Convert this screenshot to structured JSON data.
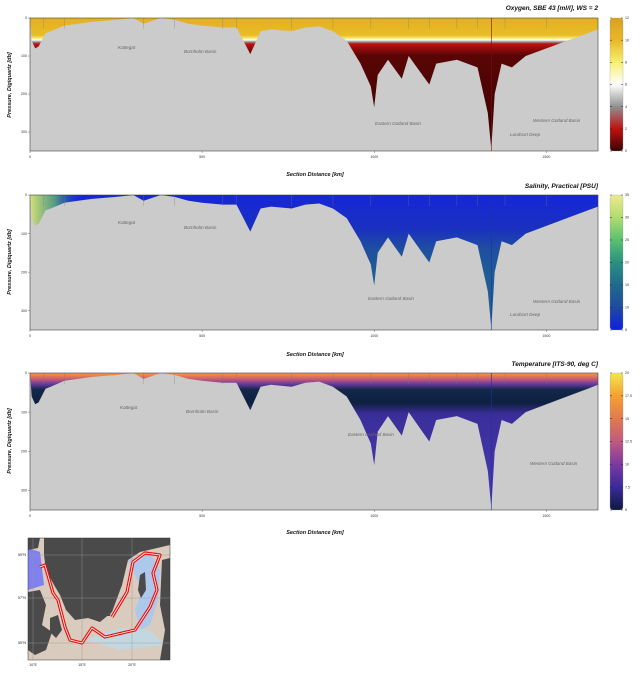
{
  "chart_data": [
    {
      "type": "heatmap",
      "title": "Oxygen, SBE 43 [ml/l], WS = 2",
      "xlabel": "Section Distance [km]",
      "ylabel": "Pressure, Digiquartz [db]",
      "xlim": [
        0,
        1650
      ],
      "ylim": [
        350,
        0
      ],
      "xticks": [
        "0",
        "500",
        "1000",
        "1500"
      ],
      "yticks": [
        "0",
        "100",
        "200",
        "300"
      ],
      "colorbar": {
        "range": [
          0,
          12
        ],
        "ticks": [
          "0",
          "2",
          "4",
          "6",
          "8",
          "10",
          "12"
        ],
        "colors": [
          "#3a0404",
          "#c01010",
          "#909090",
          "#ffffff",
          "#f5f070",
          "#e8b828",
          "#d8a020"
        ]
      },
      "annotations": [
        "Kattegat",
        "Bornholm Basin",
        "Eastern Gotland Basin",
        "Western Gotland Basin",
        "Landsort Deep"
      ]
    },
    {
      "type": "heatmap",
      "title": "Salinity, Practical [PSU]",
      "xlabel": "Section Distance [km]",
      "ylabel": "Pressure, Digiquartz [db]",
      "xlim": [
        0,
        1650
      ],
      "ylim": [
        350,
        0
      ],
      "xticks": [
        "0",
        "500",
        "1000",
        "1500"
      ],
      "yticks": [
        "0",
        "100",
        "200",
        "300"
      ],
      "colorbar": {
        "range": [
          5,
          35
        ],
        "ticks": [
          "5",
          "10",
          "15",
          "20",
          "25",
          "30",
          "35"
        ],
        "colors": [
          "#1020e0",
          "#1e4aa0",
          "#1f6a8c",
          "#2a9080",
          "#5ac070",
          "#b0dc70",
          "#f0e890"
        ]
      },
      "annotations": [
        "Kattegat",
        "Bornholm Basin",
        "Eastern Gotland Basin",
        "Western Gotland Basin",
        "Landsort Deep"
      ]
    },
    {
      "type": "heatmap",
      "title": "Temperature [ITS-90, deg C]",
      "xlabel": "Section Distance [km]",
      "ylabel": "Pressure, Digiquartz [db]",
      "xlim": [
        0,
        1650
      ],
      "ylim": [
        350,
        0
      ],
      "xticks": [
        "0",
        "500",
        "1000",
        "1500"
      ],
      "yticks": [
        "0",
        "100",
        "200",
        "300"
      ],
      "colorbar": {
        "range": [
          5,
          20
        ],
        "ticks": [
          "5",
          "7.5",
          "10",
          "12.5",
          "15",
          "17.5",
          "20"
        ],
        "colors": [
          "#0c1a40",
          "#3a2a9a",
          "#7a3aa0",
          "#c05a80",
          "#e07a50",
          "#f5a030",
          "#f0e850"
        ]
      },
      "annotations": [
        "Kattegat",
        "Bornholm Basin",
        "Eastern Gotland Basin",
        "Western Gotland Basin"
      ]
    }
  ],
  "bathymetry": {
    "distance_km": [
      0,
      5,
      15,
      25,
      45,
      60,
      100,
      140,
      180,
      250,
      300,
      330,
      380,
      420,
      460,
      500,
      560,
      600,
      640,
      670,
      700,
      760,
      800,
      840,
      880,
      920,
      960,
      990,
      1000,
      1010,
      1040,
      1080,
      1100,
      1140,
      1160,
      1180,
      1240,
      1300,
      1330,
      1340,
      1350,
      1370,
      1400,
      1440,
      1500,
      1560,
      1620,
      1650
    ],
    "depth_db": [
      0,
      60,
      80,
      75,
      40,
      35,
      20,
      15,
      10,
      5,
      0,
      15,
      0,
      5,
      15,
      20,
      25,
      25,
      95,
      35,
      30,
      35,
      25,
      22,
      35,
      60,
      120,
      180,
      235,
      150,
      110,
      160,
      100,
      150,
      175,
      120,
      110,
      130,
      250,
      345,
      200,
      120,
      130,
      100,
      80,
      60,
      40,
      30
    ]
  },
  "map": {
    "lat_labels": [
      "59°N",
      "57°N",
      "55°N"
    ],
    "lon_labels": [
      "10°E",
      "15°E",
      "20°E"
    ]
  }
}
